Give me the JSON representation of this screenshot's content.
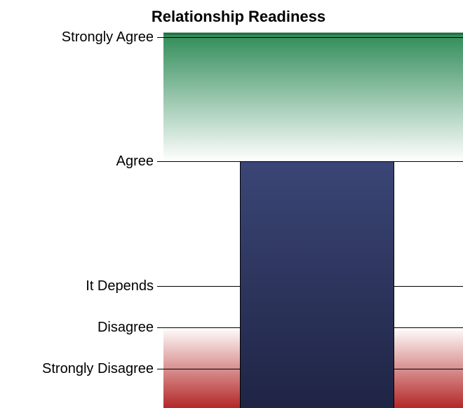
{
  "chart_data": {
    "type": "bar",
    "title": "Relationship Readiness",
    "categories": [
      null
    ],
    "values": [
      6
    ],
    "color": "#33396a",
    "ylim": [
      0,
      9.1
    ],
    "yticks": [
      {
        "value": 9,
        "label": "Strongly Agree"
      },
      {
        "value": 6,
        "label": "Agree"
      },
      {
        "value": 3,
        "label": "It Depends"
      },
      {
        "value": 2,
        "label": "Disagree"
      },
      {
        "value": 1,
        "label": "Strongly Disagree"
      }
    ],
    "grid": true,
    "bands": [
      {
        "from": 6,
        "to": 9.1,
        "color": "#2e8b57"
      },
      {
        "from": 0,
        "to": 2,
        "color": "#b22222"
      }
    ]
  }
}
